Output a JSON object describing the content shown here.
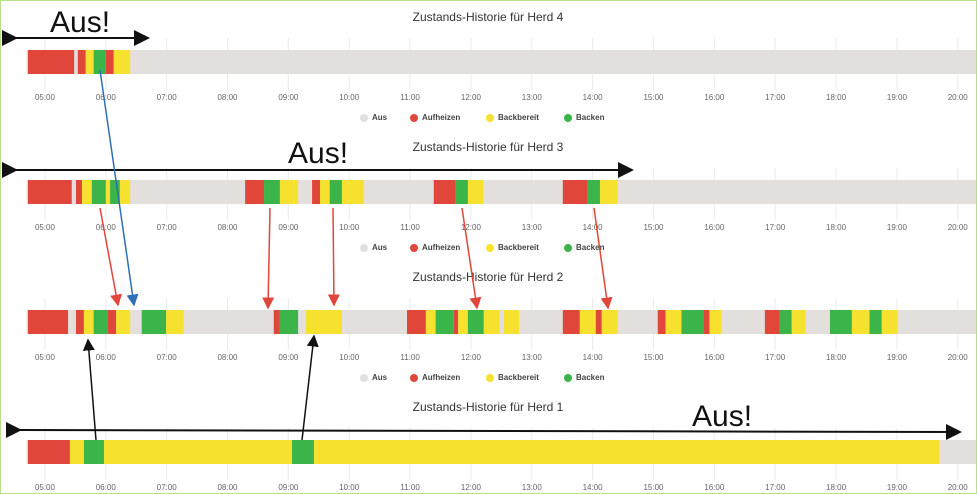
{
  "chart_data": [
    {
      "type": "timeline",
      "title": "Zustands-Historie für Herd 4",
      "legend": true,
      "xlim": [
        4.7,
        20.3
      ],
      "xticks": [
        {
          "value": 5,
          "label": "05:00"
        },
        {
          "value": 6,
          "label": "06:00"
        },
        {
          "value": 7,
          "label": "07:00"
        },
        {
          "value": 8,
          "label": "08:00"
        },
        {
          "value": 9,
          "label": "09:00"
        },
        {
          "value": 10,
          "label": "10:00"
        },
        {
          "value": 11,
          "label": "11:00"
        },
        {
          "value": 12,
          "label": "12:00"
        },
        {
          "value": 13,
          "label": "13:00"
        },
        {
          "value": 14,
          "label": "14:00"
        },
        {
          "value": 15,
          "label": "15:00"
        },
        {
          "value": 16,
          "label": "16:00"
        },
        {
          "value": 17,
          "label": "17:00"
        },
        {
          "value": 18,
          "label": "18:00"
        },
        {
          "value": 19,
          "label": "19:00"
        },
        {
          "value": 20,
          "label": "20:00"
        }
      ],
      "series": [
        {
          "name": "Aus",
          "color": "#e2dfdd",
          "intervals": []
        },
        {
          "name": "Aufheizen",
          "color": "#e0463a",
          "intervals": [
            [
              4.72,
              5.48
            ],
            [
              5.54,
              5.67
            ],
            [
              6.0,
              6.13
            ]
          ]
        },
        {
          "name": "Backbereit",
          "color": "#f6e22e",
          "intervals": [
            [
              5.67,
              5.8
            ],
            [
              6.13,
              6.4
            ]
          ]
        },
        {
          "name": "Backen",
          "color": "#3bb54a",
          "intervals": [
            [
              5.8,
              6.0
            ]
          ]
        }
      ]
    },
    {
      "type": "timeline",
      "title": "Zustands-Historie für Herd 3",
      "legend": true,
      "xlim": [
        4.7,
        20.3
      ],
      "xticks": [
        {
          "value": 5,
          "label": "05:00"
        },
        {
          "value": 6,
          "label": "06:00"
        },
        {
          "value": 7,
          "label": "07:00"
        },
        {
          "value": 8,
          "label": "08:00"
        },
        {
          "value": 9,
          "label": "09:00"
        },
        {
          "value": 10,
          "label": "10:00"
        },
        {
          "value": 11,
          "label": "11:00"
        },
        {
          "value": 12,
          "label": "12:00"
        },
        {
          "value": 13,
          "label": "13:00"
        },
        {
          "value": 14,
          "label": "14:00"
        },
        {
          "value": 15,
          "label": "15:00"
        },
        {
          "value": 16,
          "label": "16:00"
        },
        {
          "value": 17,
          "label": "17:00"
        },
        {
          "value": 18,
          "label": "18:00"
        },
        {
          "value": 19,
          "label": "19:00"
        },
        {
          "value": 20,
          "label": "20:00"
        }
      ],
      "series": [
        {
          "name": "Aus",
          "color": "#e2dfdd",
          "intervals": []
        },
        {
          "name": "Aufheizen",
          "color": "#e0463a",
          "intervals": [
            [
              4.72,
              5.44
            ],
            [
              5.51,
              5.61
            ],
            [
              8.29,
              8.6
            ],
            [
              9.39,
              9.52
            ],
            [
              11.39,
              11.75
            ],
            [
              13.51,
              13.92
            ]
          ]
        },
        {
          "name": "Backbereit",
          "color": "#f6e22e",
          "intervals": [
            [
              5.61,
              5.77
            ],
            [
              6.0,
              6.07
            ],
            [
              6.23,
              6.4
            ],
            [
              8.86,
              9.16
            ],
            [
              9.52,
              9.68
            ],
            [
              9.88,
              10.24
            ],
            [
              11.95,
              12.2
            ],
            [
              14.12,
              14.41
            ]
          ]
        },
        {
          "name": "Backen",
          "color": "#3bb54a",
          "intervals": [
            [
              5.77,
              6.0
            ],
            [
              6.07,
              6.23
            ],
            [
              8.6,
              8.86
            ],
            [
              9.68,
              9.88
            ],
            [
              11.75,
              11.95
            ],
            [
              13.92,
              14.12
            ]
          ]
        }
      ]
    },
    {
      "type": "timeline",
      "title": "Zustands-Historie für Herd 2",
      "legend": true,
      "xlim": [
        4.7,
        20.3
      ],
      "xticks": [
        {
          "value": 5,
          "label": "05:00"
        },
        {
          "value": 6,
          "label": "06:00"
        },
        {
          "value": 7,
          "label": "07:00"
        },
        {
          "value": 8,
          "label": "08:00"
        },
        {
          "value": 9,
          "label": "09:00"
        },
        {
          "value": 10,
          "label": "10:00"
        },
        {
          "value": 11,
          "label": "11:00"
        },
        {
          "value": 12,
          "label": "12:00"
        },
        {
          "value": 13,
          "label": "13:00"
        },
        {
          "value": 14,
          "label": "14:00"
        },
        {
          "value": 15,
          "label": "15:00"
        },
        {
          "value": 16,
          "label": "16:00"
        },
        {
          "value": 17,
          "label": "17:00"
        },
        {
          "value": 18,
          "label": "18:00"
        },
        {
          "value": 19,
          "label": "19:00"
        },
        {
          "value": 20,
          "label": "20:00"
        }
      ],
      "series": [
        {
          "name": "Aus",
          "color": "#e2dfdd",
          "intervals": []
        },
        {
          "name": "Aufheizen",
          "color": "#e0463a",
          "intervals": [
            [
              4.72,
              5.38
            ],
            [
              5.51,
              5.64
            ],
            [
              6.03,
              6.17
            ],
            [
              8.76,
              8.86
            ],
            [
              10.95,
              11.26
            ],
            [
              11.72,
              11.79
            ],
            [
              13.51,
              13.79
            ],
            [
              14.05,
              14.15
            ],
            [
              15.07,
              15.2
            ],
            [
              15.83,
              15.92
            ],
            [
              16.83,
              17.07
            ]
          ]
        },
        {
          "name": "Backbereit",
          "color": "#f6e22e",
          "intervals": [
            [
              5.64,
              5.8
            ],
            [
              6.17,
              6.4
            ],
            [
              6.99,
              7.28
            ],
            [
              9.29,
              9.88
            ],
            [
              11.26,
              11.42
            ],
            [
              11.79,
              11.95
            ],
            [
              12.21,
              12.47
            ],
            [
              12.54,
              12.79
            ],
            [
              13.79,
              14.05
            ],
            [
              14.15,
              14.41
            ],
            [
              15.2,
              15.46
            ],
            [
              15.92,
              16.12
            ],
            [
              17.27,
              17.5
            ],
            [
              18.26,
              18.55
            ],
            [
              18.75,
              19.01
            ]
          ]
        },
        {
          "name": "Backen",
          "color": "#3bb54a",
          "intervals": [
            [
              5.8,
              6.03
            ],
            [
              6.59,
              6.99
            ],
            [
              8.86,
              9.16
            ],
            [
              11.42,
              11.72
            ],
            [
              11.95,
              12.21
            ],
            [
              15.46,
              15.83
            ],
            [
              17.07,
              17.27
            ],
            [
              17.9,
              18.26
            ],
            [
              18.55,
              18.75
            ]
          ]
        }
      ]
    },
    {
      "type": "timeline",
      "title": "Zustands-Historie für Herd 1",
      "legend": false,
      "xlim": [
        4.7,
        20.3
      ],
      "xticks": [
        {
          "value": 5,
          "label": "05:00"
        },
        {
          "value": 6,
          "label": "06:00"
        },
        {
          "value": 7,
          "label": "07:00"
        },
        {
          "value": 8,
          "label": "08:00"
        },
        {
          "value": 9,
          "label": "09:00"
        },
        {
          "value": 10,
          "label": "10:00"
        },
        {
          "value": 11,
          "label": "11:00"
        },
        {
          "value": 12,
          "label": "12:00"
        },
        {
          "value": 13,
          "label": "13:00"
        },
        {
          "value": 14,
          "label": "14:00"
        },
        {
          "value": 15,
          "label": "15:00"
        },
        {
          "value": 16,
          "label": "16:00"
        },
        {
          "value": 17,
          "label": "17:00"
        },
        {
          "value": 18,
          "label": "18:00"
        },
        {
          "value": 19,
          "label": "19:00"
        },
        {
          "value": 20,
          "label": "20:00"
        }
      ],
      "series": [
        {
          "name": "Aus",
          "color": "#e2dfdd",
          "intervals": []
        },
        {
          "name": "Aufheizen",
          "color": "#e0463a",
          "intervals": [
            [
              4.72,
              5.41
            ]
          ]
        },
        {
          "name": "Backbereit",
          "color": "#f6e22e",
          "intervals": [
            [
              5.41,
              5.64
            ],
            [
              5.97,
              9.06
            ],
            [
              9.42,
              19.7
            ]
          ]
        },
        {
          "name": "Backen",
          "color": "#3bb54a",
          "intervals": [
            [
              5.64,
              5.97
            ],
            [
              9.06,
              9.42
            ]
          ]
        }
      ]
    }
  ],
  "annotations": [
    "Aus!",
    "Aus!",
    "Aus!"
  ]
}
